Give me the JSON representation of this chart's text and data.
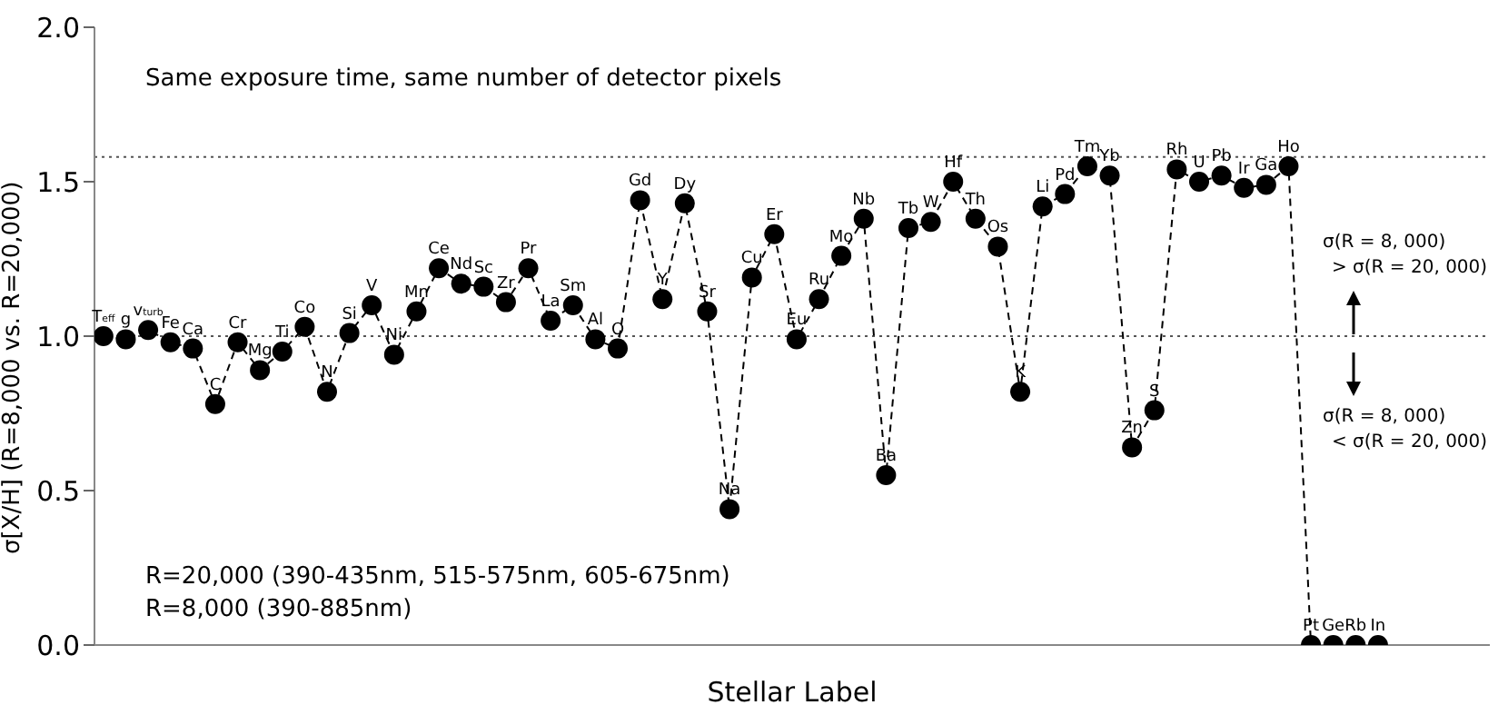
{
  "chart_data": {
    "type": "line",
    "xlabel": "Stellar Label",
    "ylabel": "σ[X/H] (R=8,000 vs. R=20,000)",
    "categories": [
      "T$_{eff}$",
      "g",
      "v$_{turb}$",
      "Fe",
      "Ca",
      "C",
      "Cr",
      "Mg",
      "Ti",
      "Co",
      "N",
      "Si",
      "V",
      "Ni",
      "Mn",
      "Ce",
      "Nd",
      "Sc",
      "Zr",
      "Pr",
      "La",
      "Sm",
      "Al",
      "O",
      "Gd",
      "Y",
      "Dy",
      "Sr",
      "Na",
      "Cu",
      "Er",
      "Eu",
      "Ru",
      "Mo",
      "Nb",
      "Ba",
      "Tb",
      "W",
      "Hf",
      "Th",
      "Os",
      "K",
      "Li",
      "Pd",
      "Tm",
      "Yb",
      "Zn",
      "S",
      "Rh",
      "U",
      "Pb",
      "Ir",
      "Ga",
      "Ho",
      "Pt",
      "Ge",
      "Rb",
      "In"
    ],
    "series": [
      {
        "color": "#000000",
        "values": [
          1.0,
          0.99,
          1.02,
          0.98,
          0.96,
          0.78,
          0.98,
          0.89,
          0.95,
          1.03,
          0.82,
          1.01,
          1.1,
          0.94,
          1.08,
          1.22,
          1.17,
          1.16,
          1.11,
          1.22,
          1.05,
          1.1,
          0.99,
          0.96,
          1.44,
          1.12,
          1.43,
          1.08,
          0.44,
          1.19,
          1.33,
          0.99,
          1.12,
          1.26,
          1.38,
          0.55,
          1.35,
          1.37,
          1.5,
          1.38,
          1.29,
          0.82,
          1.42,
          1.46,
          1.55,
          1.52,
          0.64,
          0.76,
          1.54,
          1.5,
          1.52,
          1.48,
          1.49,
          1.55,
          0,
          0,
          0,
          0
        ]
      }
    ],
    "ylim": [
      0,
      2
    ],
    "yticks": [
      {
        "value": 0,
        "label": "0.0"
      },
      {
        "value": 0.5,
        "label": "0.5"
      },
      {
        "value": 1,
        "label": "1.0"
      },
      {
        "value": 1.5,
        "label": "1.5"
      },
      {
        "value": 2,
        "label": "2.0"
      }
    ],
    "ref_lines": [
      {
        "axis": "y",
        "value": 1.0,
        "line_style": "dotted",
        "color": "#555555"
      },
      {
        "axis": "y",
        "value": 1.58,
        "line_style": "dotted",
        "color": "#555555"
      }
    ],
    "annotations": [
      "Same exposure time, same number of detector pixels",
      "R=20,000 (390-435nm, 515-575nm, 605-675nm)",
      "R=8,000 (390-885nm)",
      "σ(R = 8, 000)",
      "> σ(R = 20, 000)",
      "σ(R = 8, 000)",
      "< σ(R = 20, 000)"
    ],
    "tick_labels": "y",
    "marker": "circle",
    "line_style": "dashed",
    "grid": false
  }
}
